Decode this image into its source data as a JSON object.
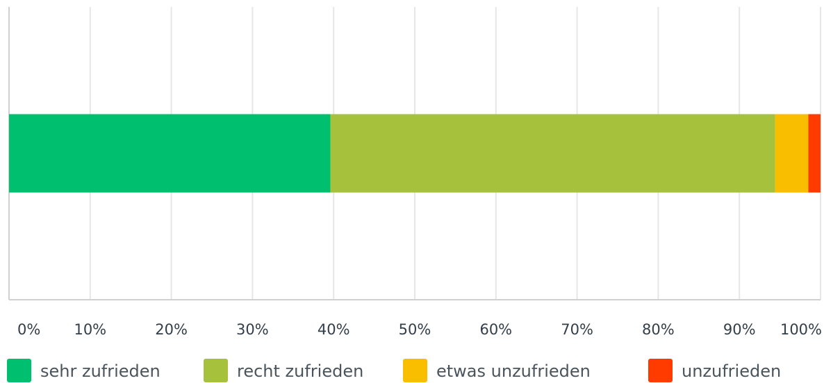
{
  "chart_data": {
    "type": "stacked-bar-horizontal",
    "categories": [
      null
    ],
    "series": [
      {
        "name": "sehr zufrieden",
        "color": "#00bf6f",
        "values": [
          39.6
        ]
      },
      {
        "name": "recht zufrieden",
        "color": "#a6c13c",
        "values": [
          54.8
        ]
      },
      {
        "name": "etwas unzufrieden",
        "color": "#f9be00",
        "values": [
          4.1
        ]
      },
      {
        "name": "unzufrieden",
        "color": "#ff3b00",
        "values": [
          1.5
        ]
      }
    ],
    "xlim": [
      0,
      100
    ],
    "xticks": [
      {
        "value": 0,
        "label": "0%"
      },
      {
        "value": 10,
        "label": "10%"
      },
      {
        "value": 20,
        "label": "20%"
      },
      {
        "value": 30,
        "label": "30%"
      },
      {
        "value": 40,
        "label": "40%"
      },
      {
        "value": 50,
        "label": "50%"
      },
      {
        "value": 60,
        "label": "60%"
      },
      {
        "value": 70,
        "label": "70%"
      },
      {
        "value": 80,
        "label": "80%"
      },
      {
        "value": 90,
        "label": "90%"
      },
      {
        "value": 100,
        "label": "100%"
      }
    ],
    "grid": true,
    "legend": "bottom"
  }
}
